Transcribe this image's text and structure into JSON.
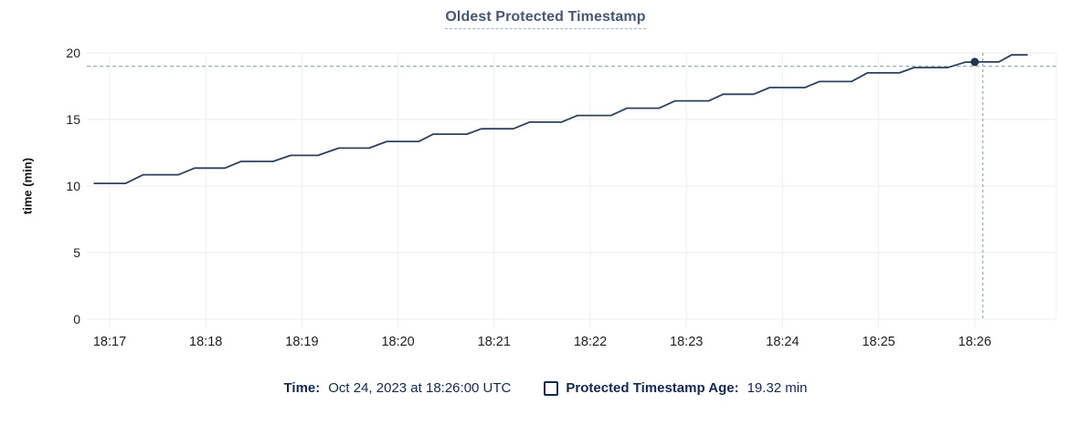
{
  "chart_data": {
    "type": "line",
    "title": "Oldest Protected Timestamp",
    "ylabel": "time (min)",
    "ylim": [
      0,
      20
    ],
    "yticks": [
      0,
      5,
      10,
      15,
      20
    ],
    "xtick_labels": [
      "18:17",
      "18:18",
      "18:19",
      "18:20",
      "18:21",
      "18:22",
      "18:23",
      "18:24",
      "18:25",
      "18:26"
    ],
    "grid": true,
    "legend_position": "bottom",
    "series": [
      {
        "name": "Protected Timestamp Age",
        "unit": "min",
        "points": [
          [
            "18:16:50",
            10.2
          ],
          [
            "18:17:10",
            10.2
          ],
          [
            "18:17:21",
            10.85
          ],
          [
            "18:17:43",
            10.85
          ],
          [
            "18:17:53",
            11.35
          ],
          [
            "18:18:12",
            11.35
          ],
          [
            "18:18:22",
            11.85
          ],
          [
            "18:18:42",
            11.85
          ],
          [
            "18:18:53",
            12.3
          ],
          [
            "18:19:10",
            12.3
          ],
          [
            "18:19:23",
            12.85
          ],
          [
            "18:19:42",
            12.85
          ],
          [
            "18:19:53",
            13.35
          ],
          [
            "18:20:13",
            13.35
          ],
          [
            "18:20:22",
            13.9
          ],
          [
            "18:20:43",
            13.9
          ],
          [
            "18:20:52",
            14.3
          ],
          [
            "18:21:12",
            14.3
          ],
          [
            "18:21:22",
            14.8
          ],
          [
            "18:21:42",
            14.8
          ],
          [
            "18:21:52",
            15.3
          ],
          [
            "18:22:13",
            15.3
          ],
          [
            "18:22:23",
            15.85
          ],
          [
            "18:22:43",
            15.85
          ],
          [
            "18:22:53",
            16.4
          ],
          [
            "18:23:14",
            16.4
          ],
          [
            "18:23:23",
            16.9
          ],
          [
            "18:23:42",
            16.9
          ],
          [
            "18:23:52",
            17.4
          ],
          [
            "18:24:14",
            17.4
          ],
          [
            "18:24:23",
            17.85
          ],
          [
            "18:24:43",
            17.85
          ],
          [
            "18:24:53",
            18.5
          ],
          [
            "18:25:13",
            18.5
          ],
          [
            "18:25:22",
            18.9
          ],
          [
            "18:25:43",
            18.9
          ],
          [
            "18:25:54",
            19.3
          ],
          [
            "18:26:00",
            19.32
          ],
          [
            "18:26:15",
            19.32
          ],
          [
            "18:26:23",
            19.85
          ],
          [
            "18:26:33",
            19.85
          ]
        ]
      }
    ],
    "hover": {
      "point_time": "18:26:00",
      "point_value": 19.32,
      "crosshair_time": "18:26:05",
      "crosshair_value": 19.0
    }
  },
  "legend": {
    "time_label": "Time:",
    "time_value": "Oct 24, 2023 at 18:26:00 UTC",
    "series_label": "Protected Timestamp Age:",
    "series_value": "19.32 min"
  },
  "colors": {
    "title": "#475872",
    "legend_text": "#13294d",
    "axis_text": "#1f1f1f",
    "h_grid": "#ececec",
    "v_grid": "#f0f0f0",
    "line": "#2d415f",
    "dot": "#22344f",
    "crosshair": "#9bafb9",
    "title_underline": "#9fb3cc"
  }
}
